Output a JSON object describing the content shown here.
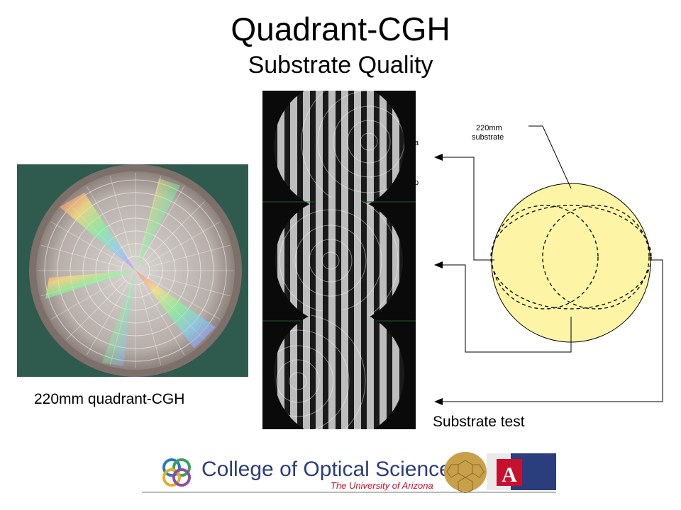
{
  "slide": {
    "title": "Quadrant-CGH",
    "subtitle": "Substrate Quality"
  },
  "left_figure": {
    "caption": "220mm quadrant-CGH"
  },
  "fringe_figure": {
    "label_a": "a",
    "label_b": "b"
  },
  "right_figure": {
    "substrate_label_line1": "220mm",
    "substrate_label_line2": "substrate",
    "caption": "Substrate test"
  },
  "footer": {
    "college": "College of Optical Sciences",
    "university": "The University of Arizona",
    "colors": {
      "blue": "#2a3d7c",
      "red": "#c8102e",
      "gold": "#c9a04a"
    }
  },
  "colors": {
    "substrate_fill": "#fdf5a5",
    "cgh_background": "#2f5a4e"
  }
}
